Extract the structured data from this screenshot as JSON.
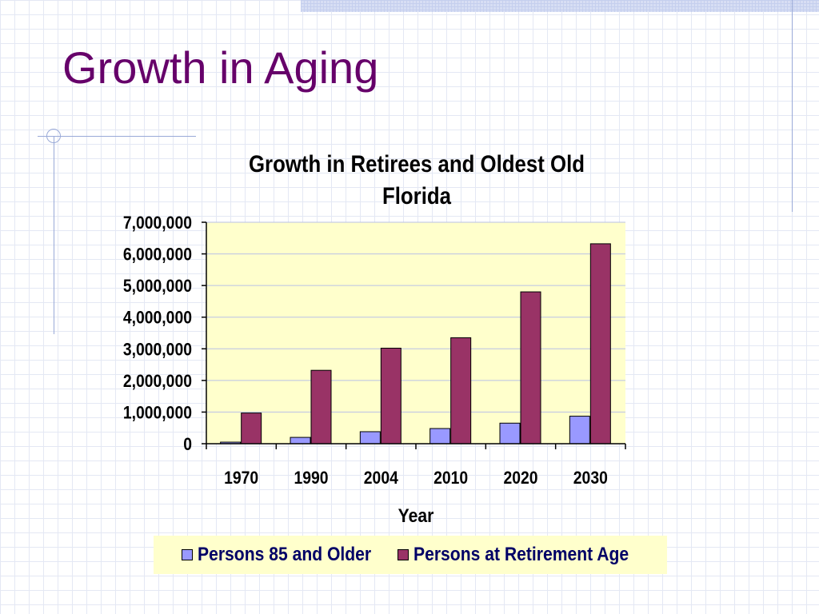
{
  "slide": {
    "title": "Growth in Aging"
  },
  "colors": {
    "title": "#66006a",
    "series1": "#9999ff",
    "series2": "#993366",
    "plot_background": "#ffffcc",
    "legend_text": "#000066"
  },
  "chart_data": {
    "type": "bar",
    "title": "Growth in Retirees and Oldest Old Florida",
    "title_lines": [
      "Growth in Retirees and Oldest Old",
      "Florida"
    ],
    "xlabel": "Year",
    "ylabel": "",
    "categories": [
      "1970",
      "1990",
      "2004",
      "2010",
      "2020",
      "2030"
    ],
    "series": [
      {
        "name": "Persons 85 and Older",
        "color": "#9999ff",
        "values": [
          50000,
          200000,
          380000,
          480000,
          650000,
          870000
        ]
      },
      {
        "name": "Persons at Retirement Age",
        "color": "#993366",
        "values": [
          970000,
          2320000,
          3020000,
          3350000,
          4800000,
          6320000
        ]
      }
    ],
    "ylim": [
      0,
      7000000
    ],
    "yticks": [
      0,
      1000000,
      2000000,
      3000000,
      4000000,
      5000000,
      6000000,
      7000000
    ],
    "ytick_labels": [
      "0",
      "1,000,000",
      "2,000,000",
      "3,000,000",
      "4,000,000",
      "5,000,000",
      "6,000,000",
      "7,000,000"
    ],
    "grid": true,
    "legend_position": "bottom"
  }
}
